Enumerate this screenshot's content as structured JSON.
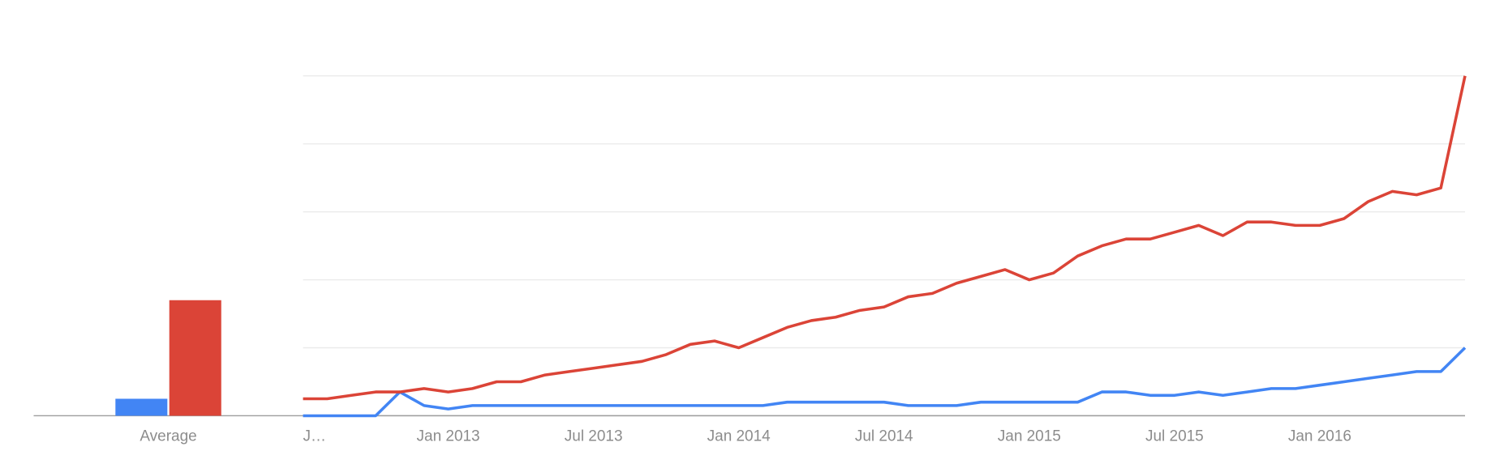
{
  "chart_data": [
    {
      "type": "bar",
      "categories": [
        "Average"
      ],
      "ylim": [
        0,
        100
      ],
      "series": [
        {
          "color": "#4285f4",
          "values": [
            5
          ]
        },
        {
          "color": "#db4437",
          "values": [
            34
          ]
        }
      ]
    },
    {
      "type": "line",
      "ylim": [
        0,
        100
      ],
      "yticks": [
        0,
        20,
        40,
        60,
        80,
        100
      ],
      "grid": true,
      "categories": [
        "J…",
        null,
        null,
        null,
        null,
        null,
        "Jan 2013",
        null,
        null,
        null,
        null,
        null,
        "Jul 2013",
        null,
        null,
        null,
        null,
        null,
        "Jan 2014",
        null,
        null,
        null,
        null,
        null,
        "Jul 2014",
        null,
        null,
        null,
        null,
        null,
        "Jan 2015",
        null,
        null,
        null,
        null,
        null,
        "Jul 2015",
        null,
        null,
        null,
        null,
        null,
        "Jan 2016",
        null,
        null,
        null,
        null,
        null,
        null
      ],
      "series": [
        {
          "color": "#4285f4",
          "values": [
            0,
            0,
            0,
            0,
            7,
            3,
            2,
            3,
            3,
            3,
            3,
            3,
            3,
            3,
            3,
            3,
            3,
            3,
            3,
            3,
            4,
            4,
            4,
            4,
            4,
            3,
            3,
            3,
            4,
            4,
            4,
            4,
            4,
            7,
            7,
            6,
            6,
            7,
            6,
            7,
            8,
            8,
            9,
            10,
            11,
            12,
            13,
            13,
            20
          ]
        },
        {
          "color": "#db4437",
          "values": [
            5,
            5,
            6,
            7,
            7,
            8,
            7,
            8,
            10,
            10,
            12,
            13,
            14,
            15,
            16,
            18,
            21,
            22,
            20,
            23,
            26,
            28,
            29,
            31,
            32,
            35,
            36,
            39,
            41,
            43,
            40,
            42,
            47,
            50,
            52,
            52,
            54,
            56,
            53,
            57,
            57,
            56,
            56,
            58,
            63,
            66,
            65,
            67,
            100
          ]
        }
      ]
    }
  ]
}
